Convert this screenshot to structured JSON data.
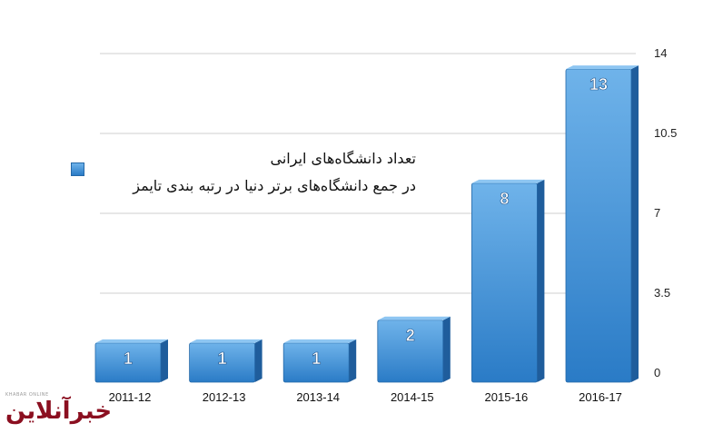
{
  "chart_data": {
    "type": "bar",
    "categories": [
      "2011-12",
      "2012-13",
      "2013-14",
      "2014-15",
      "2015-16",
      "2016-17"
    ],
    "values": [
      1,
      1,
      1,
      2,
      8,
      13
    ],
    "data_labels": [
      "1",
      "1",
      "1",
      "2",
      "8",
      "13"
    ],
    "y_ticks": [
      "0",
      "3.5",
      "7",
      "10.5",
      "14"
    ],
    "ylim": [
      0,
      14
    ],
    "y_axis_side": "right",
    "grid": true,
    "bar_style": "3d",
    "legend": {
      "placement": "center-left",
      "lines": [
        "تعداد دانشگاه‌های ایرانی",
        "در جمع دانشگاه‌های برتر دنیا در رتبه بندی تایمز"
      ]
    },
    "colors": {
      "bar_top": "#6fb3ea",
      "bar_bottom": "#2a7bc6",
      "bar_side": "#1f5d9c",
      "bar_cap": "#8ec6f2",
      "grid": "#cfcfcf",
      "label": "#ffffff"
    }
  },
  "watermark": {
    "small_text": "KHABAR ONLINE",
    "main_text": "خبرآنلاین",
    "color": "#8b0f20"
  }
}
